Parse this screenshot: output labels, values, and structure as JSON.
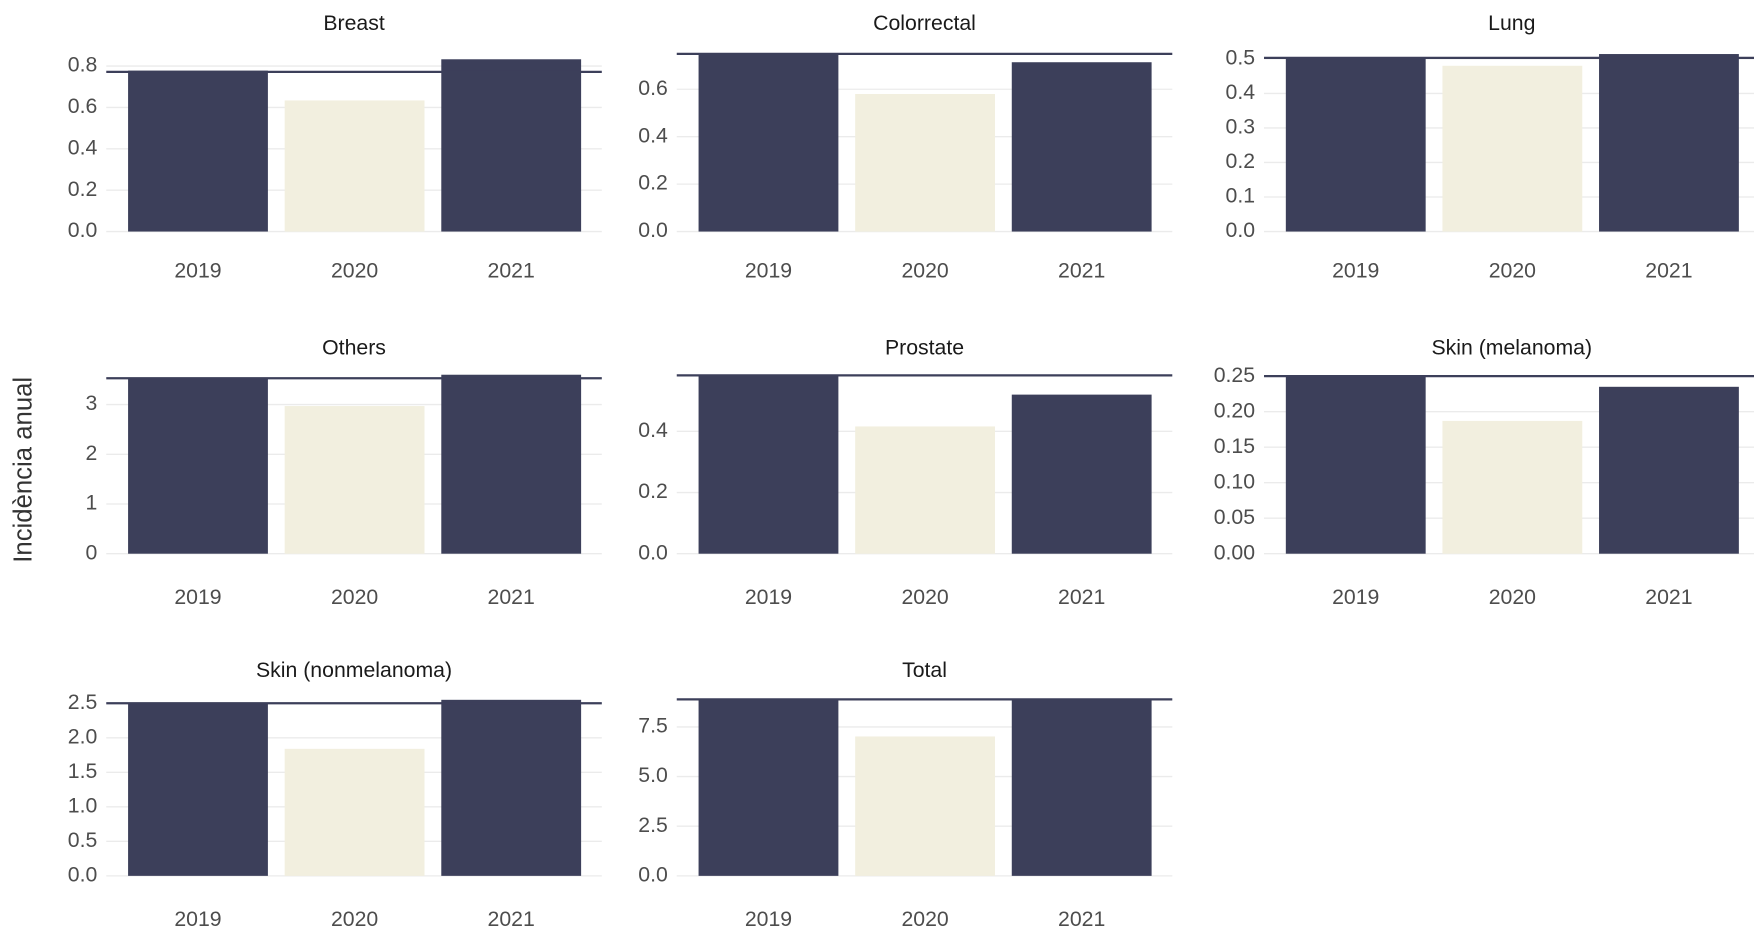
{
  "ylabel": "Incidència anual",
  "chart_data": [
    {
      "type": "bar",
      "title": "Breast",
      "categories": [
        "2019",
        "2020",
        "2021"
      ],
      "values": [
        0.778,
        0.634,
        0.833
      ],
      "reference": 0.772,
      "colors": [
        "#3c3f5a",
        "#f2efdf",
        "#3c3f5a"
      ],
      "ylim": [
        0,
        0.86
      ],
      "yticks": [
        {
          "value": 0,
          "label": "0.0"
        },
        0.2,
        0.4,
        0.6,
        0.8
      ],
      "grid": true
    },
    {
      "type": "bar",
      "title": "Colorrectal",
      "categories": [
        "2019",
        "2020",
        "2021"
      ],
      "values": [
        0.749,
        0.58,
        0.714
      ],
      "reference": 0.749,
      "colors": [
        "#3c3f5a",
        "#f2efdf",
        "#3c3f5a"
      ],
      "ylim": [
        0,
        0.75
      ],
      "yticks": [
        {
          "value": 0,
          "label": "0.0"
        },
        0.2,
        0.4,
        0.6
      ],
      "grid": true
    },
    {
      "type": "bar",
      "title": "Lung",
      "categories": [
        "2019",
        "2020",
        "2021"
      ],
      "values": [
        0.503,
        0.48,
        0.514
      ],
      "reference": 0.503,
      "colors": [
        "#3c3f5a",
        "#f2efdf",
        "#3c3f5a"
      ],
      "ylim": [
        0,
        0.515
      ],
      "yticks": [
        {
          "value": 0,
          "label": "0.0"
        },
        0.1,
        0.2,
        0.3,
        0.4,
        0.5
      ],
      "grid": true
    },
    {
      "type": "bar",
      "title": "Others",
      "categories": [
        "2019",
        "2020",
        "2021"
      ],
      "values": [
        3.53,
        2.97,
        3.6
      ],
      "reference": 3.53,
      "colors": [
        "#3c3f5a",
        "#f2efdf",
        "#3c3f5a"
      ],
      "ylim": [
        0,
        3.6
      ],
      "yticks": [
        0,
        1,
        2,
        3
      ],
      "grid": true
    },
    {
      "type": "bar",
      "title": "Prostate",
      "categories": [
        "2019",
        "2020",
        "2021"
      ],
      "values": [
        0.583,
        0.416,
        0.52
      ],
      "reference": 0.583,
      "colors": [
        "#3c3f5a",
        "#f2efdf",
        "#3c3f5a"
      ],
      "ylim": [
        0,
        0.585
      ],
      "yticks": [
        {
          "value": 0,
          "label": "0.0"
        },
        0.2,
        0.4
      ],
      "grid": true
    },
    {
      "type": "bar",
      "title": "Skin (melanoma)",
      "categories": [
        "2019",
        "2020",
        "2021"
      ],
      "values": [
        0.25,
        0.187,
        0.235
      ],
      "reference": 0.25,
      "colors": [
        "#3c3f5a",
        "#f2efdf",
        "#3c3f5a"
      ],
      "ylim": [
        0,
        0.252
      ],
      "yticks": [
        {
          "value": 0,
          "label": "0.00"
        },
        0.05,
        {
          "value": 0.1,
          "label": "0.10"
        },
        0.15,
        {
          "value": 0.2,
          "label": "0.20"
        },
        0.25
      ],
      "grid": true
    },
    {
      "type": "bar",
      "title": "Skin (nonmelanoma)",
      "categories": [
        "2019",
        "2020",
        "2021"
      ],
      "values": [
        2.5,
        1.84,
        2.55
      ],
      "reference": 2.5,
      "colors": [
        "#3c3f5a",
        "#f2efdf",
        "#3c3f5a"
      ],
      "ylim": [
        0,
        2.56
      ],
      "yticks": [
        {
          "value": 0,
          "label": "0.0"
        },
        0.5,
        {
          "value": 1,
          "label": "1.0"
        },
        1.5,
        {
          "value": 2,
          "label": "2.0"
        },
        2.5
      ],
      "grid": true
    },
    {
      "type": "bar",
      "title": "Total",
      "categories": [
        "2019",
        "2020",
        "2021"
      ],
      "values": [
        8.89,
        7.02,
        8.89
      ],
      "reference": 8.89,
      "colors": [
        "#3c3f5a",
        "#f2efdf",
        "#3c3f5a"
      ],
      "ylim": [
        0,
        8.9
      ],
      "yticks": [
        {
          "value": 0,
          "label": "0.0"
        },
        2.5,
        {
          "value": 5,
          "label": "5.0"
        },
        7.5
      ],
      "grid": true
    }
  ]
}
